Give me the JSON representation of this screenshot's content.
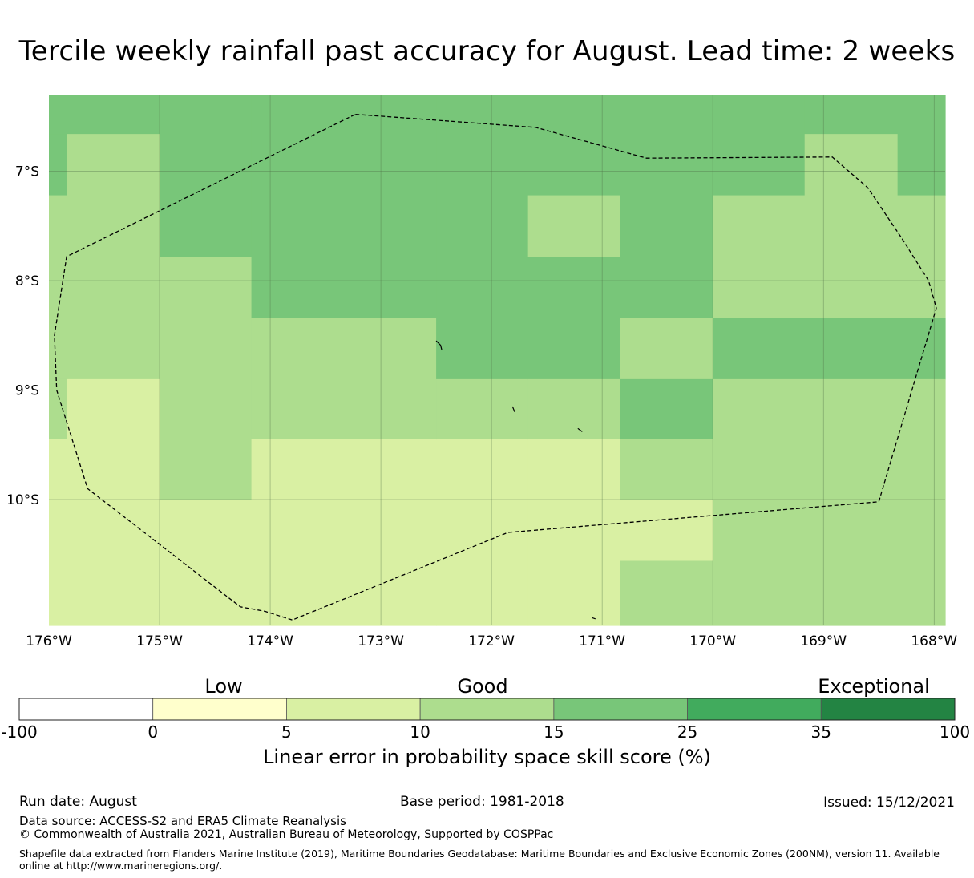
{
  "title": "Tercile weekly rainfall past accuracy for August. Lead time: 2 weeks",
  "map": {
    "lon_range": [
      -176,
      -167.9
    ],
    "lat_range": [
      -11.15,
      -6.3
    ],
    "lat_ticks": [
      {
        "v": -7,
        "label": "7°S"
      },
      {
        "v": -8,
        "label": "8°S"
      },
      {
        "v": -9,
        "label": "9°S"
      },
      {
        "v": -10,
        "label": "10°S"
      }
    ],
    "lon_ticks": [
      {
        "v": -176,
        "label": "176°W"
      },
      {
        "v": -175,
        "label": "175°W"
      },
      {
        "v": -174,
        "label": "174°W"
      },
      {
        "v": -173,
        "label": "173°W"
      },
      {
        "v": -172,
        "label": "172°W"
      },
      {
        "v": -171,
        "label": "171°W"
      },
      {
        "v": -170,
        "label": "170°W"
      },
      {
        "v": -169,
        "label": "169°W"
      },
      {
        "v": -168,
        "label": "168°W"
      }
    ],
    "grid": "on",
    "colors": {
      "5": "#d9f0a3",
      "10": "#addd8e",
      "15": "#78c679"
    },
    "cells": [
      {
        "lon0": -176,
        "lon1": -175,
        "lat0": -6.3,
        "lat1": -6.66,
        "c": "15"
      },
      {
        "lon0": -176,
        "lon1": -175.84,
        "lat0": -6.66,
        "lat1": -7.22,
        "c": "15"
      },
      {
        "lon0": -175.84,
        "lon1": -175,
        "lat0": -6.66,
        "lat1": -7.22,
        "c": "10"
      },
      {
        "lon0": -176,
        "lon1": -175,
        "lat0": -7.22,
        "lat1": -8.9,
        "c": "10"
      },
      {
        "lon0": -176,
        "lon1": -175.84,
        "lat0": -8.9,
        "lat1": -9.45,
        "c": "10"
      },
      {
        "lon0": -175.84,
        "lon1": -175,
        "lat0": -8.9,
        "lat1": -9.45,
        "c": "5"
      },
      {
        "lon0": -176,
        "lon1": -175,
        "lat0": -9.45,
        "lat1": -11.15,
        "c": "5"
      },
      {
        "lon0": -175,
        "lon1": -174.17,
        "lat0": -6.3,
        "lat1": -7.78,
        "c": "15"
      },
      {
        "lon0": -175,
        "lon1": -174.17,
        "lat0": -7.78,
        "lat1": -10.0,
        "c": "10"
      },
      {
        "lon0": -175,
        "lon1": -174.17,
        "lat0": -10.0,
        "lat1": -11.15,
        "c": "5"
      },
      {
        "lon0": -174.17,
        "lon1": -172.5,
        "lat0": -6.3,
        "lat1": -8.34,
        "c": "15"
      },
      {
        "lon0": -174.17,
        "lon1": -172.5,
        "lat0": -8.34,
        "lat1": -9.45,
        "c": "10"
      },
      {
        "lon0": -174.17,
        "lon1": -172.5,
        "lat0": -9.45,
        "lat1": -11.15,
        "c": "5"
      },
      {
        "lon0": -172.5,
        "lon1": -171.67,
        "lat0": -6.3,
        "lat1": -8.9,
        "c": "15"
      },
      {
        "lon0": -172.5,
        "lon1": -171.67,
        "lat0": -8.9,
        "lat1": -9.45,
        "c": "10"
      },
      {
        "lon0": -172.5,
        "lon1": -171.67,
        "lat0": -9.45,
        "lat1": -11.15,
        "c": "5"
      },
      {
        "lon0": -171.67,
        "lon1": -170.84,
        "lat0": -6.3,
        "lat1": -7.22,
        "c": "15"
      },
      {
        "lon0": -171.67,
        "lon1": -170.84,
        "lat0": -7.22,
        "lat1": -7.78,
        "c": "10"
      },
      {
        "lon0": -171.67,
        "lon1": -170.84,
        "lat0": -7.78,
        "lat1": -8.9,
        "c": "15"
      },
      {
        "lon0": -171.67,
        "lon1": -170.84,
        "lat0": -8.9,
        "lat1": -9.45,
        "c": "10"
      },
      {
        "lon0": -171.67,
        "lon1": -170.84,
        "lat0": -9.45,
        "lat1": -11.15,
        "c": "5"
      },
      {
        "lon0": -170.84,
        "lon1": -170.0,
        "lat0": -6.3,
        "lat1": -8.34,
        "c": "15"
      },
      {
        "lon0": -170.84,
        "lon1": -170.0,
        "lat0": -8.34,
        "lat1": -8.9,
        "c": "10"
      },
      {
        "lon0": -170.84,
        "lon1": -170.0,
        "lat0": -8.9,
        "lat1": -9.45,
        "c": "15"
      },
      {
        "lon0": -170.84,
        "lon1": -170.0,
        "lat0": -9.45,
        "lat1": -10.0,
        "c": "10"
      },
      {
        "lon0": -170.84,
        "lon1": -170.0,
        "lat0": -10.0,
        "lat1": -10.56,
        "c": "5"
      },
      {
        "lon0": -170.84,
        "lon1": -170.0,
        "lat0": -10.56,
        "lat1": -11.15,
        "c": "10"
      },
      {
        "lon0": -170.0,
        "lon1": -169.17,
        "lat0": -6.3,
        "lat1": -7.22,
        "c": "15"
      },
      {
        "lon0": -169.17,
        "lon1": -168.33,
        "lat0": -6.3,
        "lat1": -6.66,
        "c": "15"
      },
      {
        "lon0": -169.17,
        "lon1": -168.33,
        "lat0": -6.66,
        "lat1": -7.22,
        "c": "10"
      },
      {
        "lon0": -168.33,
        "lon1": -167.9,
        "lat0": -6.3,
        "lat1": -7.22,
        "c": "15"
      },
      {
        "lon0": -170.0,
        "lon1": -167.9,
        "lat0": -7.22,
        "lat1": -8.34,
        "c": "10"
      },
      {
        "lon0": -170.0,
        "lon1": -167.9,
        "lat0": -8.34,
        "lat1": -8.9,
        "c": "15"
      },
      {
        "lon0": -170.0,
        "lon1": -167.9,
        "lat0": -8.9,
        "lat1": -11.15,
        "c": "10"
      }
    ],
    "boundary": [
      [
        -173.23,
        -6.48
      ],
      [
        -171.6,
        -6.6
      ],
      [
        -170.6,
        -6.88
      ],
      [
        -168.92,
        -6.87
      ],
      [
        -168.6,
        -7.15
      ],
      [
        -168.3,
        -7.6
      ],
      [
        -168.05,
        -8.0
      ],
      [
        -167.98,
        -8.25
      ],
      [
        -168.5,
        -10.02
      ],
      [
        -171.85,
        -10.3
      ],
      [
        -173.8,
        -11.1
      ],
      [
        -174.05,
        -11.02
      ],
      [
        -174.27,
        -10.98
      ],
      [
        -175.65,
        -9.9
      ],
      [
        -175.93,
        -9.0
      ],
      [
        -175.95,
        -8.5
      ],
      [
        -175.84,
        -7.78
      ],
      [
        -173.23,
        -6.48
      ]
    ],
    "islets": [
      [
        [
          -172.5,
          -8.55
        ],
        [
          -172.46,
          -8.59
        ],
        [
          -172.45,
          -8.63
        ]
      ],
      [
        [
          -171.81,
          -9.15
        ],
        [
          -171.79,
          -9.2
        ]
      ],
      [
        [
          -171.22,
          -9.35
        ],
        [
          -171.18,
          -9.38
        ]
      ],
      [
        [
          -171.09,
          -11.08
        ],
        [
          -171.06,
          -11.09
        ]
      ]
    ]
  },
  "colorbar": {
    "bins": [
      {
        "from": "-100",
        "to": "0",
        "color": "#ffffff"
      },
      {
        "from": "0",
        "to": "5",
        "color": "#ffffcc"
      },
      {
        "from": "5",
        "to": "10",
        "color": "#d9f0a3"
      },
      {
        "from": "10",
        "to": "15",
        "color": "#addd8e"
      },
      {
        "from": "15",
        "to": "25",
        "color": "#78c679"
      },
      {
        "from": "25",
        "to": "35",
        "color": "#41ab5d"
      },
      {
        "from": "35",
        "to": "100",
        "color": "#238443"
      }
    ],
    "ticks": [
      "-100",
      "0",
      "5",
      "10",
      "15",
      "25",
      "35",
      "100"
    ],
    "categories": [
      "Low",
      "Good",
      "Exceptional"
    ],
    "label": "Linear error in probability space skill score (%)"
  },
  "footer": {
    "run_date": "Run date: August",
    "base_period": "Base period: 1981-2018",
    "issued": "Issued: 15/12/2021",
    "data_source": "Data source: ACCESS-S2 and ERA5 Climate Reanalysis",
    "copyright": "© Commonwealth of Australia 2021, Australian Bureau of Meteorology, Supported by COSPPac",
    "shapefile": "Shapefile data extracted from Flanders Marine Institute (2019), Maritime Boundaries Geodatabase: Maritime Boundaries and Exclusive Economic Zones (200NM), version 11. Available online at http://www.marineregions.org/."
  }
}
